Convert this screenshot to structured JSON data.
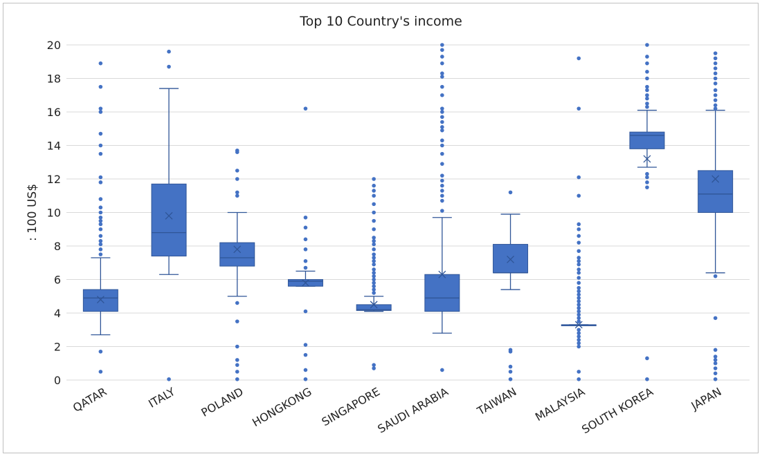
{
  "chart_data": {
    "type": "box",
    "title": "Top 10 Country's income",
    "xlabel": "",
    "ylabel": ": 100 US$",
    "ylim": [
      0,
      20
    ],
    "yticks": [
      0,
      2,
      4,
      6,
      8,
      10,
      12,
      14,
      16,
      18,
      20
    ],
    "grid": true,
    "legend": "none",
    "color": "#4472c4",
    "edge_color": "#2f5597",
    "categories": [
      "QATAR",
      "ITALY",
      "POLAND",
      "HONGKONG",
      "SINGAPORE",
      "SAUDI ARABIA",
      "TAIWAN",
      "MALAYSIA",
      "SOUTH KOREA",
      "JAPAN"
    ],
    "boxes": [
      {
        "category": "QATAR",
        "whisker_low": 2.7,
        "q1": 4.1,
        "median": 4.9,
        "q3": 5.4,
        "whisker_high": 7.3,
        "mean": 4.8,
        "outliers": [
          0.5,
          1.7,
          7.5,
          7.8,
          8.1,
          8.3,
          8.6,
          9.0,
          9.3,
          9.5,
          9.7,
          10.0,
          10.3,
          10.8,
          11.8,
          12.1,
          13.5,
          14.0,
          14.7,
          16.0,
          16.2,
          17.5,
          18.9
        ]
      },
      {
        "category": "ITALY",
        "whisker_low": 6.3,
        "q1": 7.4,
        "median": 8.8,
        "q3": 11.7,
        "whisker_high": 17.4,
        "mean": 9.8,
        "outliers": [
          0.05,
          18.7,
          19.6
        ]
      },
      {
        "category": "POLAND",
        "whisker_low": 5.0,
        "q1": 6.8,
        "median": 7.3,
        "q3": 8.2,
        "whisker_high": 10.0,
        "mean": 7.8,
        "outliers": [
          0.05,
          0.5,
          0.9,
          1.2,
          2.0,
          3.5,
          4.6,
          11.0,
          11.2,
          12.0,
          12.5,
          13.6,
          13.7
        ]
      },
      {
        "category": "HONGKONG",
        "whisker_low": 5.6,
        "q1": 5.6,
        "median": 5.9,
        "q3": 6.0,
        "whisker_high": 6.5,
        "mean": 5.8,
        "outliers": [
          0.05,
          0.6,
          1.5,
          2.1,
          4.1,
          6.7,
          7.1,
          7.8,
          8.4,
          9.1,
          9.7,
          16.2
        ]
      },
      {
        "category": "SINGAPORE",
        "whisker_low": 4.1,
        "q1": 4.15,
        "median": 4.2,
        "q3": 4.5,
        "whisker_high": 5.0,
        "mean": 4.5,
        "outliers": [
          0.7,
          0.9,
          5.2,
          5.4,
          5.6,
          5.8,
          6.0,
          6.2,
          6.4,
          6.6,
          6.9,
          7.1,
          7.3,
          7.5,
          7.8,
          8.1,
          8.3,
          8.5,
          9.0,
          9.5,
          10.0,
          10.5,
          11.0,
          11.3,
          11.6,
          12.0
        ]
      },
      {
        "category": "SAUDI ARABIA",
        "whisker_low": 2.8,
        "q1": 4.1,
        "median": 4.9,
        "q3": 6.3,
        "whisker_high": 9.7,
        "mean": 6.3,
        "outliers": [
          0.6,
          10.1,
          10.7,
          11.0,
          11.3,
          11.6,
          11.9,
          12.2,
          12.9,
          13.5,
          14.0,
          14.3,
          14.9,
          15.1,
          15.4,
          15.7,
          16.0,
          16.2,
          17.0,
          17.5,
          18.1,
          18.3,
          18.9,
          19.3,
          19.7,
          20.0
        ]
      },
      {
        "category": "TAIWAN",
        "whisker_low": 5.4,
        "q1": 6.4,
        "median": 6.4,
        "q3": 8.1,
        "whisker_high": 9.9,
        "mean": 7.2,
        "outliers": [
          0.05,
          0.5,
          0.8,
          1.7,
          1.8,
          11.2
        ]
      },
      {
        "category": "MALAYSIA",
        "whisker_low": 3.3,
        "q1": 3.3,
        "median": 3.3,
        "q3": 3.3,
        "whisker_high": 3.3,
        "mean": 3.3,
        "outliers": [
          0.05,
          0.5,
          2.0,
          2.2,
          2.4,
          2.6,
          2.8,
          3.0,
          3.5,
          3.7,
          3.9,
          4.1,
          4.3,
          4.5,
          4.7,
          4.9,
          5.1,
          5.3,
          5.5,
          5.8,
          6.1,
          6.4,
          6.6,
          6.9,
          7.1,
          7.3,
          7.7,
          8.2,
          8.6,
          9.0,
          9.3,
          11.0,
          12.1,
          16.2,
          19.2
        ]
      },
      {
        "category": "SOUTH KOREA",
        "whisker_low": 12.7,
        "q1": 13.8,
        "median": 14.6,
        "q3": 14.8,
        "whisker_high": 16.1,
        "mean": 13.2,
        "outliers": [
          0.05,
          1.3,
          11.5,
          11.8,
          12.1,
          12.3,
          16.3,
          16.5,
          16.8,
          17.0,
          17.3,
          17.5,
          18.0,
          18.4,
          18.9,
          19.3,
          20.0
        ]
      },
      {
        "category": "JAPAN",
        "whisker_low": 6.4,
        "q1": 10.0,
        "median": 11.1,
        "q3": 12.5,
        "whisker_high": 16.1,
        "mean": 12.0,
        "outliers": [
          0.05,
          0.4,
          0.7,
          1.0,
          1.2,
          1.4,
          1.8,
          3.7,
          6.2,
          16.2,
          16.4,
          16.7,
          17.0,
          17.3,
          17.7,
          18.0,
          18.3,
          18.6,
          18.9,
          19.2,
          19.5
        ]
      }
    ]
  }
}
